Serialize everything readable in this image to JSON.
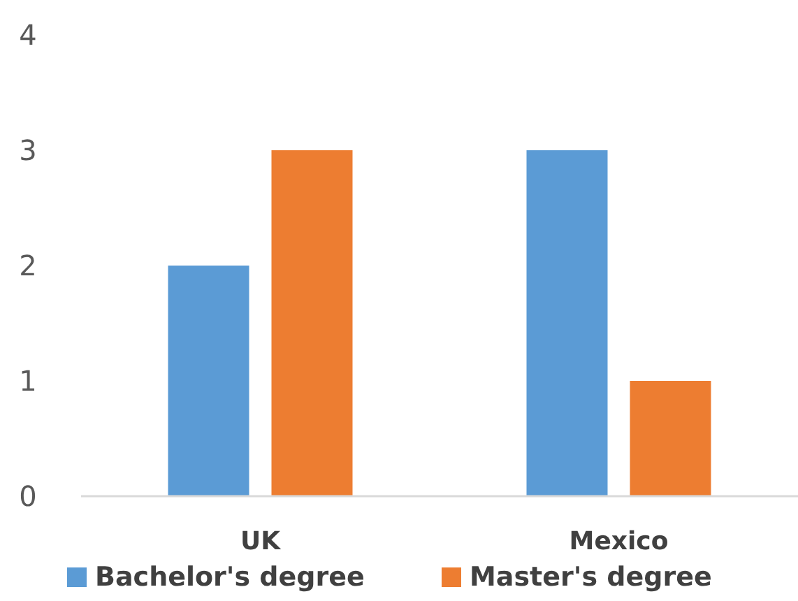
{
  "chart_data": {
    "type": "bar",
    "categories": [
      "UK",
      "Mexico"
    ],
    "series": [
      {
        "name": "Bachelor's degree",
        "color": "#5b9bd5",
        "values": [
          2,
          3
        ]
      },
      {
        "name": "Master's degree",
        "color": "#ed7d31",
        "values": [
          3,
          1
        ]
      }
    ],
    "ylim": [
      0,
      4
    ],
    "yticks": [
      0,
      1,
      2,
      3,
      4
    ],
    "grid": false,
    "legend": "bottom"
  }
}
